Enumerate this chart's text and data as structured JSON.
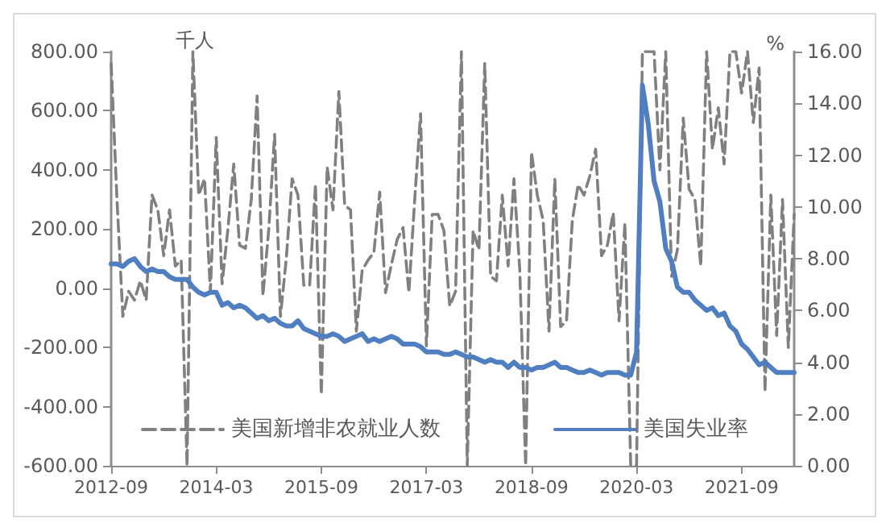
{
  "chart_data": {
    "type": "line",
    "categories": [
      "2012-09",
      null,
      null,
      null,
      null,
      null,
      null,
      null,
      null,
      null,
      null,
      null,
      null,
      null,
      null,
      null,
      null,
      null,
      "2014-03",
      null,
      null,
      null,
      null,
      null,
      null,
      null,
      null,
      null,
      null,
      null,
      null,
      null,
      null,
      null,
      null,
      null,
      "2015-09",
      null,
      null,
      null,
      null,
      null,
      null,
      null,
      null,
      null,
      null,
      null,
      null,
      null,
      null,
      null,
      null,
      null,
      "2017-03",
      null,
      null,
      null,
      null,
      null,
      null,
      null,
      null,
      null,
      null,
      null,
      null,
      null,
      null,
      null,
      null,
      null,
      "2018-09",
      null,
      null,
      null,
      null,
      null,
      null,
      null,
      null,
      null,
      null,
      null,
      null,
      null,
      null,
      null,
      null,
      null,
      "2020-03",
      null,
      null,
      null,
      null,
      null,
      null,
      null,
      null,
      null,
      null,
      null,
      null,
      null,
      null,
      null,
      null,
      null,
      "2021-09",
      null,
      null,
      null,
      null,
      null,
      null,
      null,
      null,
      null
    ],
    "series": [
      {
        "name": "美国新增非农就业人数",
        "color": "#808080",
        "line_style": "dashed",
        "values": [
          760,
          300,
          -95,
          -10,
          -40,
          25,
          -40,
          315,
          265,
          110,
          265,
          75,
          95,
          -600,
          800,
          315,
          370,
          -10,
          510,
          15,
          200,
          420,
          145,
          135,
          300,
          650,
          -25,
          200,
          520,
          -95,
          100,
          370,
          315,
          10,
          10,
          350,
          -360,
          410,
          265,
          665,
          280,
          265,
          -145,
          60,
          95,
          120,
          325,
          -15,
          80,
          165,
          205,
          -15,
          300,
          590,
          -195,
          250,
          250,
          195,
          -60,
          -10,
          800,
          -600,
          195,
          130,
          760,
          40,
          25,
          315,
          75,
          370,
          60,
          -600,
          460,
          315,
          230,
          -145,
          370,
          -130,
          -110,
          230,
          350,
          315,
          380,
          470,
          110,
          145,
          255,
          -110,
          220,
          -600,
          -600,
          800,
          800,
          800,
          400,
          800,
          40,
          130,
          575,
          335,
          300,
          75,
          800,
          470,
          610,
          420,
          800,
          800,
          660,
          800,
          560,
          745,
          -350,
          315,
          -160,
          300,
          -200,
          250
        ]
      },
      {
        "name": "美国失业率",
        "color": "#4f7fc0",
        "line_style": "solid",
        "axis": "y2",
        "values": [
          7.8,
          7.8,
          7.7,
          7.9,
          8.0,
          7.7,
          7.5,
          7.6,
          7.5,
          7.5,
          7.3,
          7.2,
          7.2,
          7.2,
          6.9,
          6.7,
          6.6,
          6.7,
          6.7,
          6.2,
          6.3,
          6.1,
          6.2,
          6.1,
          5.9,
          5.7,
          5.8,
          5.6,
          5.7,
          5.5,
          5.4,
          5.4,
          5.6,
          5.3,
          5.2,
          5.1,
          5.0,
          5.0,
          5.1,
          5.0,
          4.8,
          4.9,
          5.0,
          5.1,
          4.8,
          4.9,
          4.8,
          4.9,
          5.0,
          4.9,
          4.7,
          4.7,
          4.7,
          4.6,
          4.4,
          4.4,
          4.4,
          4.3,
          4.3,
          4.4,
          4.3,
          4.2,
          4.2,
          4.1,
          4.0,
          4.1,
          4.0,
          4.0,
          3.8,
          4.0,
          3.8,
          3.8,
          3.7,
          3.8,
          3.8,
          3.9,
          4.0,
          3.8,
          3.8,
          3.7,
          3.6,
          3.6,
          3.7,
          3.6,
          3.5,
          3.6,
          3.6,
          3.6,
          3.5,
          3.5,
          4.4,
          14.7,
          13.2,
          11.0,
          10.2,
          8.4,
          7.9,
          6.9,
          6.7,
          6.7,
          6.4,
          6.2,
          6.0,
          6.1,
          5.8,
          5.9,
          5.4,
          5.2,
          4.7,
          4.5,
          4.2,
          3.9,
          4.0,
          3.8,
          3.6,
          3.6,
          3.6,
          3.6
        ]
      }
    ],
    "ylim": [
      -600,
      800
    ],
    "yticks": [
      {
        "value": -600,
        "label": "-600.00"
      },
      {
        "value": -400,
        "label": "-400.00"
      },
      {
        "value": -200,
        "label": "-200.00"
      },
      {
        "value": 0,
        "label": "0.00"
      },
      {
        "value": 200,
        "label": "200.00"
      },
      {
        "value": 400,
        "label": "400.00"
      },
      {
        "value": 600,
        "label": "600.00"
      },
      {
        "value": 800,
        "label": "800.00"
      }
    ],
    "y2lim": [
      0,
      16
    ],
    "y2ticks": [
      {
        "value": 0,
        "label": "0.00"
      },
      {
        "value": 2,
        "label": "2.00"
      },
      {
        "value": 4,
        "label": "4.00"
      },
      {
        "value": 6,
        "label": "6.00"
      },
      {
        "value": 8,
        "label": "8.00"
      },
      {
        "value": 10,
        "label": "10.00"
      },
      {
        "value": 12,
        "label": "12.00"
      },
      {
        "value": 14,
        "label": "14.00"
      },
      {
        "value": 16,
        "label": "16.00"
      }
    ],
    "annotations": [
      "千人",
      "%"
    ],
    "grid": false,
    "legend": "bottom",
    "marker": "none"
  }
}
